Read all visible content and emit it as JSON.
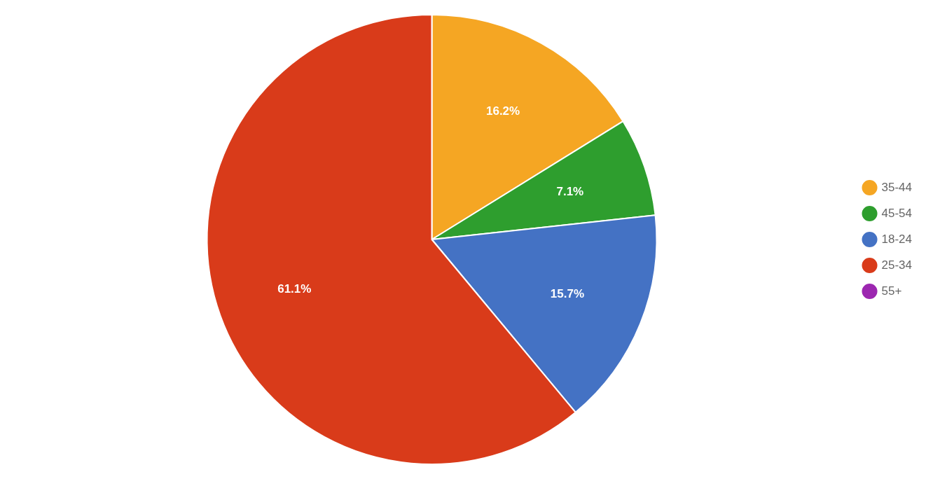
{
  "chart_data": {
    "type": "pie",
    "categories": [
      "35-44",
      "45-54",
      "18-24",
      "25-34",
      "55+"
    ],
    "values": [
      16.2,
      7.1,
      15.7,
      61.1,
      0.0
    ],
    "value_labels": [
      "16.2%",
      "7.1%",
      "15.7%",
      "61.1%",
      null
    ],
    "colors": [
      "#f5a623",
      "#2e9e2e",
      "#4472c4",
      "#d93b1a",
      "#9c27b0"
    ],
    "data_labels": true,
    "legend": "right"
  }
}
